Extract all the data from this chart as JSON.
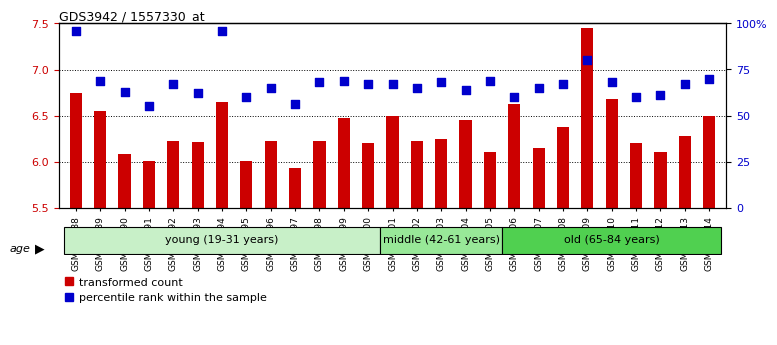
{
  "title": "GDS3942 / 1557330_at",
  "samples": [
    "GSM812988",
    "GSM812989",
    "GSM812990",
    "GSM812991",
    "GSM812992",
    "GSM812993",
    "GSM812994",
    "GSM812995",
    "GSM812996",
    "GSM812997",
    "GSM812998",
    "GSM812999",
    "GSM813000",
    "GSM813001",
    "GSM813002",
    "GSM813003",
    "GSM813004",
    "GSM813005",
    "GSM813006",
    "GSM813007",
    "GSM813008",
    "GSM813009",
    "GSM813010",
    "GSM813011",
    "GSM813012",
    "GSM813013",
    "GSM813014"
  ],
  "bar_values": [
    6.75,
    6.55,
    6.08,
    6.01,
    6.22,
    6.21,
    6.65,
    6.01,
    6.22,
    5.93,
    6.22,
    6.47,
    6.2,
    6.5,
    6.22,
    6.24,
    6.45,
    6.1,
    6.62,
    6.15,
    6.38,
    7.45,
    6.68,
    6.2,
    6.1,
    6.28,
    6.5
  ],
  "blue_values": [
    96,
    69,
    63,
    55,
    67,
    62,
    96,
    60,
    65,
    56,
    68,
    69,
    67,
    67,
    65,
    68,
    64,
    69,
    60,
    65,
    67,
    80,
    68,
    60,
    61,
    67,
    70
  ],
  "age_groups": [
    {
      "label": "young (19-31 years)",
      "start": 0,
      "end": 13,
      "color": "#c8f0c8"
    },
    {
      "label": "middle (42-61 years)",
      "start": 13,
      "end": 18,
      "color": "#98e898"
    },
    {
      "label": "old (65-84 years)",
      "start": 18,
      "end": 27,
      "color": "#50d050"
    }
  ],
  "bar_color": "#cc0000",
  "blue_color": "#0000cc",
  "ylim_left": [
    5.5,
    7.5
  ],
  "ylim_right": [
    0,
    100
  ],
  "yticks_left": [
    5.5,
    6.0,
    6.5,
    7.0,
    7.5
  ],
  "yticks_right": [
    0,
    25,
    50,
    75,
    100
  ],
  "ytick_labels_right": [
    "0",
    "25",
    "50",
    "75",
    "100%"
  ],
  "grid_values": [
    6.0,
    6.5,
    7.0
  ],
  "background_color": "#d8d8d8",
  "plot_bg": "#ffffff"
}
